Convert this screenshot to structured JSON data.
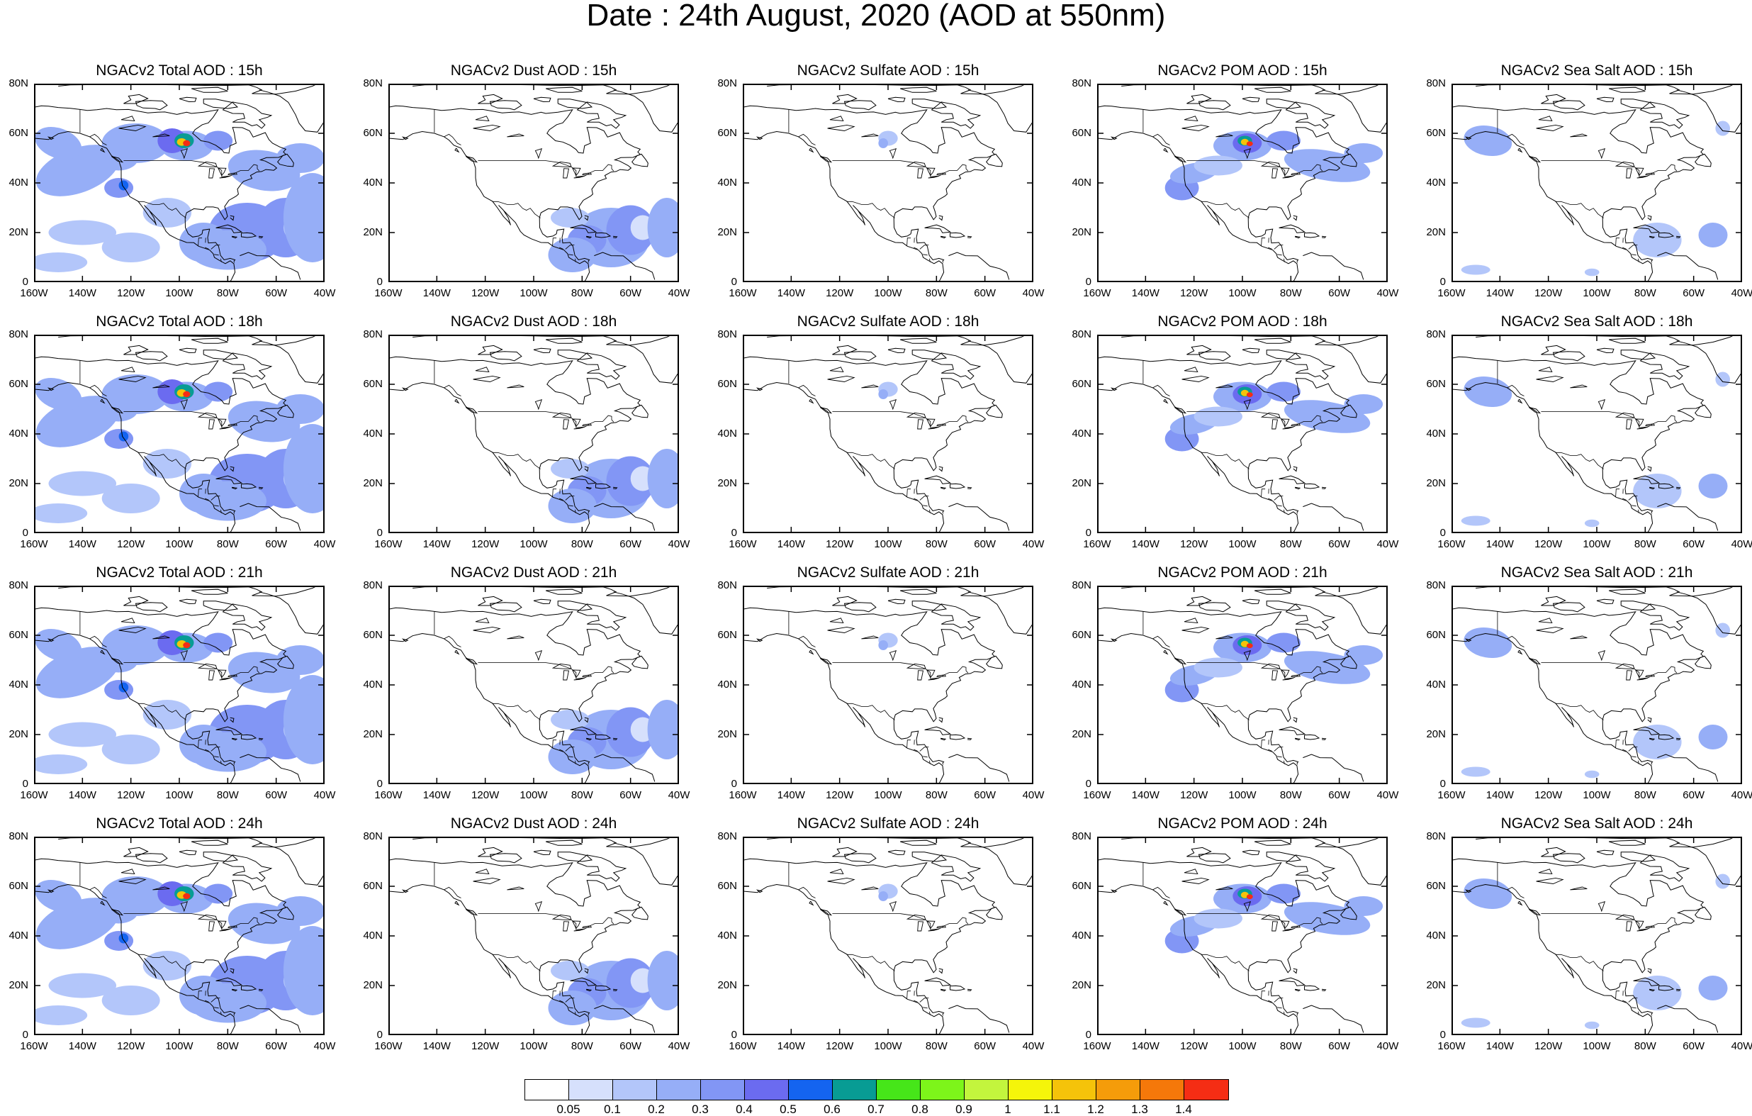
{
  "title": "Date : 24th August, 2020 (AOD at 550nm)",
  "axes": {
    "x_ticks": [
      "160W",
      "140W",
      "120W",
      "100W",
      "80W",
      "60W",
      "40W"
    ],
    "y_ticks": [
      "80N",
      "60N",
      "40N",
      "20N",
      "0"
    ]
  },
  "panels": [
    {
      "title": "NGACv2 Total AOD : 15h",
      "species": "total",
      "hour": "15h"
    },
    {
      "title": "NGACv2 Dust AOD : 15h",
      "species": "dust",
      "hour": "15h"
    },
    {
      "title": "NGACv2 Sulfate AOD : 15h",
      "species": "sulfate",
      "hour": "15h"
    },
    {
      "title": "NGACv2 POM AOD : 15h",
      "species": "pom",
      "hour": "15h"
    },
    {
      "title": "NGACv2 Sea Salt AOD : 15h",
      "species": "seasalt",
      "hour": "15h"
    },
    {
      "title": "NGACv2 Total AOD : 18h",
      "species": "total",
      "hour": "18h"
    },
    {
      "title": "NGACv2 Dust AOD : 18h",
      "species": "dust",
      "hour": "18h"
    },
    {
      "title": "NGACv2 Sulfate AOD : 18h",
      "species": "sulfate",
      "hour": "18h"
    },
    {
      "title": "NGACv2 POM AOD : 18h",
      "species": "pom",
      "hour": "18h"
    },
    {
      "title": "NGACv2 Sea Salt AOD : 18h",
      "species": "seasalt",
      "hour": "18h"
    },
    {
      "title": "NGACv2 Total AOD : 21h",
      "species": "total",
      "hour": "21h"
    },
    {
      "title": "NGACv2 Dust AOD : 21h",
      "species": "dust",
      "hour": "21h"
    },
    {
      "title": "NGACv2 Sulfate AOD : 21h",
      "species": "sulfate",
      "hour": "21h"
    },
    {
      "title": "NGACv2 POM AOD : 21h",
      "species": "pom",
      "hour": "21h"
    },
    {
      "title": "NGACv2 Sea Salt AOD : 21h",
      "species": "seasalt",
      "hour": "21h"
    },
    {
      "title": "NGACv2 Total AOD : 24h",
      "species": "total",
      "hour": "24h"
    },
    {
      "title": "NGACv2 Dust AOD : 24h",
      "species": "dust",
      "hour": "24h"
    },
    {
      "title": "NGACv2 Sulfate AOD : 24h",
      "species": "sulfate",
      "hour": "24h"
    },
    {
      "title": "NGACv2 POM AOD : 24h",
      "species": "pom",
      "hour": "24h"
    },
    {
      "title": "NGACv2 Sea Salt  AOD : 24h",
      "species": "seasalt",
      "hour": "24h"
    }
  ],
  "colorbar": {
    "labels": [
      "0.05",
      "0.1",
      "0.2",
      "0.3",
      "0.4",
      "0.5",
      "0.6",
      "0.7",
      "0.8",
      "0.9",
      "1",
      "1.1",
      "1.2",
      "1.3",
      "1.4"
    ],
    "colors": [
      "#ffffff",
      "#d6e0fc",
      "#b3c6fa",
      "#96aef7",
      "#8296f5",
      "#6b6bf0",
      "#1464f0",
      "#089c94",
      "#46e619",
      "#7df51a",
      "#c3f53d",
      "#f5f50a",
      "#f5c30a",
      "#f59c0a",
      "#f5780a",
      "#f52d14"
    ]
  }
}
